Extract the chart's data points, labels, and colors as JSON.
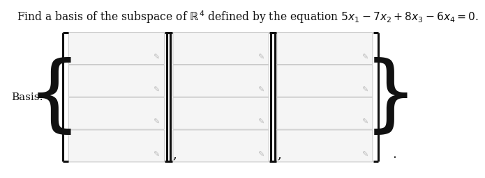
{
  "title_text": "Find a basis of the subspace of $\\mathbb{R}^4$ defined by the equation $5x_1 - 7x_2 + 8x_3 - 6x_4 = 0.$",
  "basis_label": "Basis:",
  "num_vectors": 3,
  "num_rows": 4,
  "background_color": "#ffffff",
  "box_fill_color": "#f5f5f5",
  "box_edge_color": "#cccccc",
  "bracket_color": "#111111",
  "text_color": "#111111",
  "pencil_color": "#bbbbbb",
  "separator": ",",
  "closing_dot": "."
}
